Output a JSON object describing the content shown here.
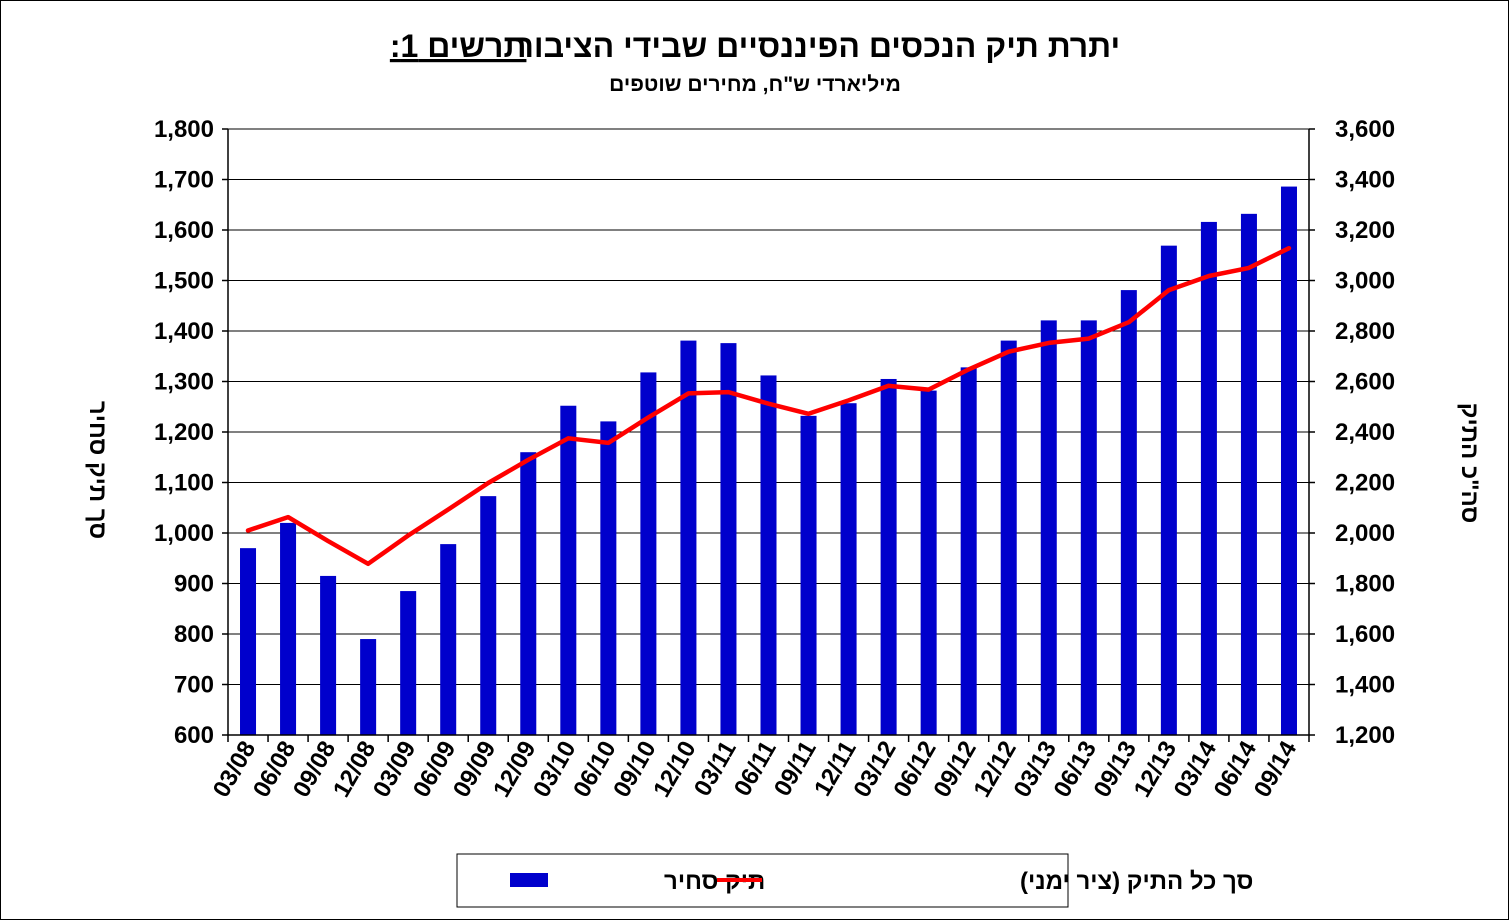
{
  "chart_data": {
    "type": "bar+line",
    "title_prefix": "תרשים 1:",
    "title_main": "יתרת תיק הנכסים הפיננסיים שבידי הציבור",
    "subtitle": "מיליארדי ש\"ח, מחירים שוטפים",
    "y_left_label": "סך תיק סחיר",
    "y_right_label": "סה\"כ התיק",
    "y_left_lim": [
      600,
      1800
    ],
    "y_right_lim": [
      1200,
      3600
    ],
    "y_left_ticks": [
      "600",
      "700",
      "800",
      "900",
      "1,000",
      "1,100",
      "1,200",
      "1,300",
      "1,400",
      "1,500",
      "1,600",
      "1,700",
      "1,800"
    ],
    "y_right_ticks": [
      "1,200",
      "1,400",
      "1,600",
      "1,800",
      "2,000",
      "2,200",
      "2,400",
      "2,600",
      "2,800",
      "3,000",
      "3,200",
      "3,400",
      "3,600"
    ],
    "categories": [
      "03/08",
      "06/08",
      "09/08",
      "12/08",
      "03/09",
      "06/09",
      "09/09",
      "12/09",
      "03/10",
      "06/10",
      "09/10",
      "12/10",
      "03/11",
      "06/11",
      "09/11",
      "12/11",
      "03/12",
      "06/12",
      "09/12",
      "12/12",
      "03/13",
      "06/13",
      "09/13",
      "12/13",
      "03/14",
      "06/14",
      "09/14"
    ],
    "series": [
      {
        "name": "תיק סחיר",
        "type": "bar",
        "axis": "left",
        "color": "#0000cc",
        "values": [
          970,
          1020,
          915,
          790,
          885,
          978,
          1073,
          1160,
          1252,
          1221,
          1318,
          1381,
          1376,
          1312,
          1232,
          1257,
          1305,
          1282,
          1328,
          1381,
          1421,
          1421,
          1481,
          1569,
          1616,
          1632,
          1686
        ]
      },
      {
        "name": "סך כל התיק (ציר ימני)",
        "type": "line",
        "axis": "right",
        "color": "#ff0000",
        "values": [
          2010,
          2063,
          1968,
          1878,
          1990,
          2093,
          2198,
          2290,
          2375,
          2357,
          2458,
          2553,
          2558,
          2512,
          2472,
          2525,
          2583,
          2568,
          2648,
          2718,
          2753,
          2770,
          2835,
          2962,
          3018,
          3050,
          3128
        ]
      }
    ],
    "legend_position": "bottom"
  }
}
